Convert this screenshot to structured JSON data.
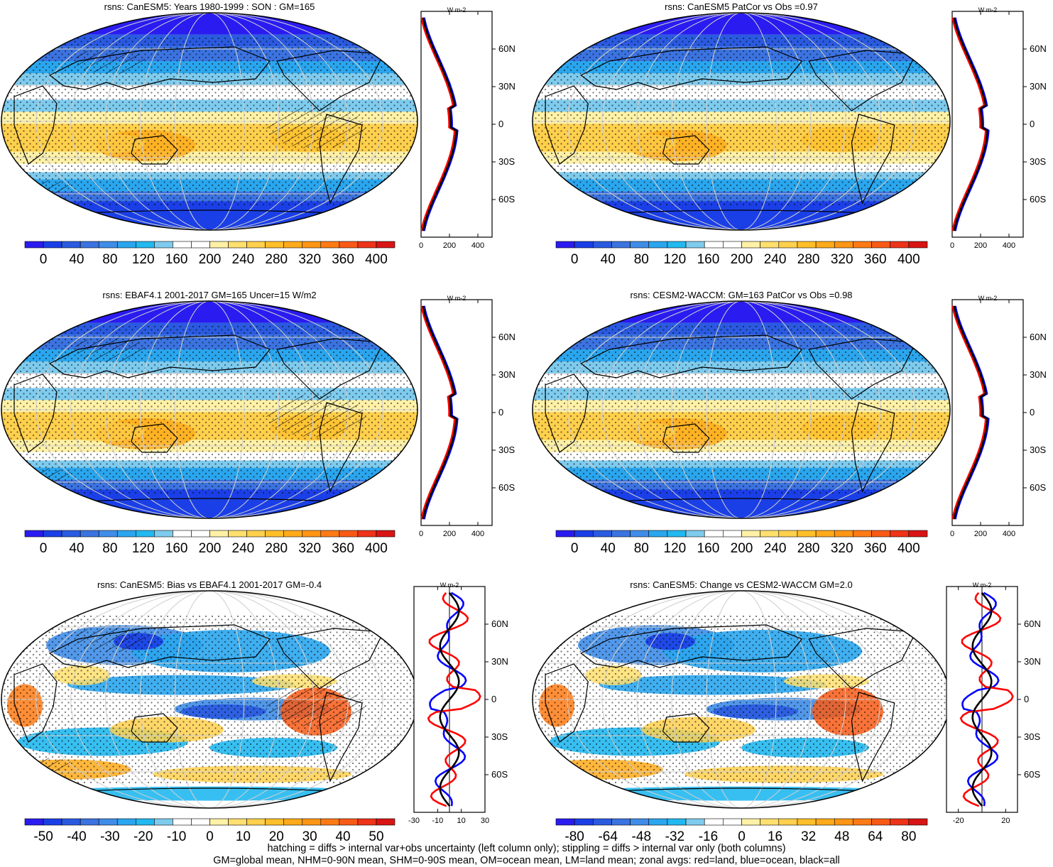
{
  "panels": [
    {
      "id": "p1",
      "title": "rsns: CanESM5: Years 1980-1999 : SON : GM=165",
      "type": "abs",
      "cbar": {
        "labels": [
          "0",
          "40",
          "80",
          "120",
          "160",
          "200",
          "240",
          "280",
          "320",
          "360",
          "400"
        ]
      },
      "zonal": {
        "ticks": [
          "0",
          "200",
          "400"
        ],
        "xmin": 0,
        "xmax": 500,
        "zero_line": false,
        "unit": "W m-2"
      }
    },
    {
      "id": "p2",
      "title": "rsns: CanESM5 PatCor vs Obs =0.97",
      "type": "abs",
      "cbar": {
        "labels": [
          "0",
          "40",
          "80",
          "120",
          "160",
          "200",
          "240",
          "280",
          "320",
          "360",
          "400"
        ]
      },
      "zonal": {
        "ticks": [
          "0",
          "200",
          "400"
        ],
        "xmin": 0,
        "xmax": 500,
        "zero_line": false,
        "unit": "W m-2"
      }
    },
    {
      "id": "p3",
      "title": "rsns: EBAF4.1 2001-2017 GM=165 Uncer=15 W/m2",
      "type": "abs",
      "cbar": {
        "labels": [
          "0",
          "40",
          "80",
          "120",
          "160",
          "200",
          "240",
          "280",
          "320",
          "360",
          "400"
        ]
      },
      "zonal": {
        "ticks": [
          "0",
          "200",
          "400"
        ],
        "xmin": 0,
        "xmax": 500,
        "zero_line": false,
        "unit": "W m-2"
      }
    },
    {
      "id": "p4",
      "title": "rsns: CESM2-WACCM: GM=163 PatCor vs Obs =0.98",
      "type": "abs",
      "cbar": {
        "labels": [
          "0",
          "40",
          "80",
          "120",
          "160",
          "200",
          "240",
          "280",
          "320",
          "360",
          "400"
        ]
      },
      "zonal": {
        "ticks": [
          "0",
          "200",
          "400"
        ],
        "xmin": 0,
        "xmax": 500,
        "zero_line": false,
        "unit": "W m-2"
      }
    },
    {
      "id": "p5",
      "title": "rsns: CanESM5: Bias vs EBAF4.1 2001-2017  GM=-0.4",
      "type": "bias",
      "cbar": {
        "labels": [
          "-50",
          "-40",
          "-30",
          "-20",
          "-10",
          "0",
          "10",
          "20",
          "30",
          "40",
          "50"
        ]
      },
      "zonal": {
        "ticks": [
          "-30",
          "-10",
          "10",
          "30"
        ],
        "xmin": -30,
        "xmax": 30,
        "zero_line": true,
        "unit": "W m-2"
      }
    },
    {
      "id": "p6",
      "title": "rsns: CanESM5: Change vs CESM2-WACCM GM=2.0",
      "type": "change",
      "cbar": {
        "labels": [
          "-80",
          "-64",
          "-48",
          "-32",
          "-16",
          "0",
          "16",
          "32",
          "48",
          "64",
          "80"
        ]
      },
      "zonal": {
        "ticks": [
          "-20",
          "20"
        ],
        "xmin": -30,
        "xmax": 30,
        "zero_line": true,
        "unit": "W m-2"
      }
    }
  ],
  "lat_labels": [
    "60N",
    "30N",
    "0",
    "30S",
    "60S"
  ],
  "colors": {
    "land_line": "#ff0000",
    "ocean_line": "#0000ff",
    "all_line": "#000000",
    "palette": [
      "#2a1cf0",
      "#1b3fe6",
      "#2a5ae0",
      "#3b73e0",
      "#3f8de8",
      "#2aa6ee",
      "#22b8f0",
      "#7ecbee",
      "#ffffff",
      "#ffffff",
      "#fff1a6",
      "#ffdf6e",
      "#ffd04d",
      "#ffbf2a",
      "#ffaa1a",
      "#ff9514",
      "#ff7a14",
      "#f85a16",
      "#ee3318",
      "#d81414"
    ]
  },
  "footer": {
    "line1": "hatching = diffs > internal var+obs uncertainty (left column only); stippling = diffs > internal var only (both columns)",
    "line2": "GM=global mean, NHM=0-90N mean, SHM=0-90S mean, OM=ocean mean, LM=land mean; zonal avgs: red=land, blue=ocean, black=all"
  }
}
